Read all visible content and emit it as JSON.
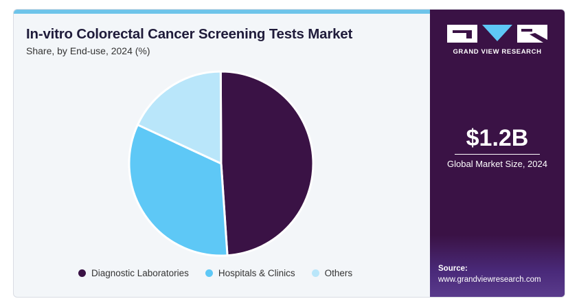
{
  "header": {
    "title": "In-vitro Colorectal Cancer Screening Tests Market",
    "subtitle": "Share, by End-use, 2024 (%)"
  },
  "chart_data": {
    "type": "pie",
    "title": "In-vitro Colorectal Cancer Screening Tests Market",
    "subtitle": "Share, by End-use, 2024 (%)",
    "categories": [
      "Diagnostic Laboratories",
      "Hospitals & Clinics",
      "Others"
    ],
    "values": [
      49,
      33,
      18
    ],
    "colors": [
      "#3a1245",
      "#5ec8f6",
      "#b9e6fa"
    ],
    "legend_position": "bottom"
  },
  "sidebar": {
    "brand": "GRAND VIEW RESEARCH",
    "market_size_value": "$1.2B",
    "market_size_label": "Global Market Size, 2024",
    "source_label": "Source:",
    "source_url": "www.grandviewresearch.com",
    "background_color": "#3a1245"
  }
}
